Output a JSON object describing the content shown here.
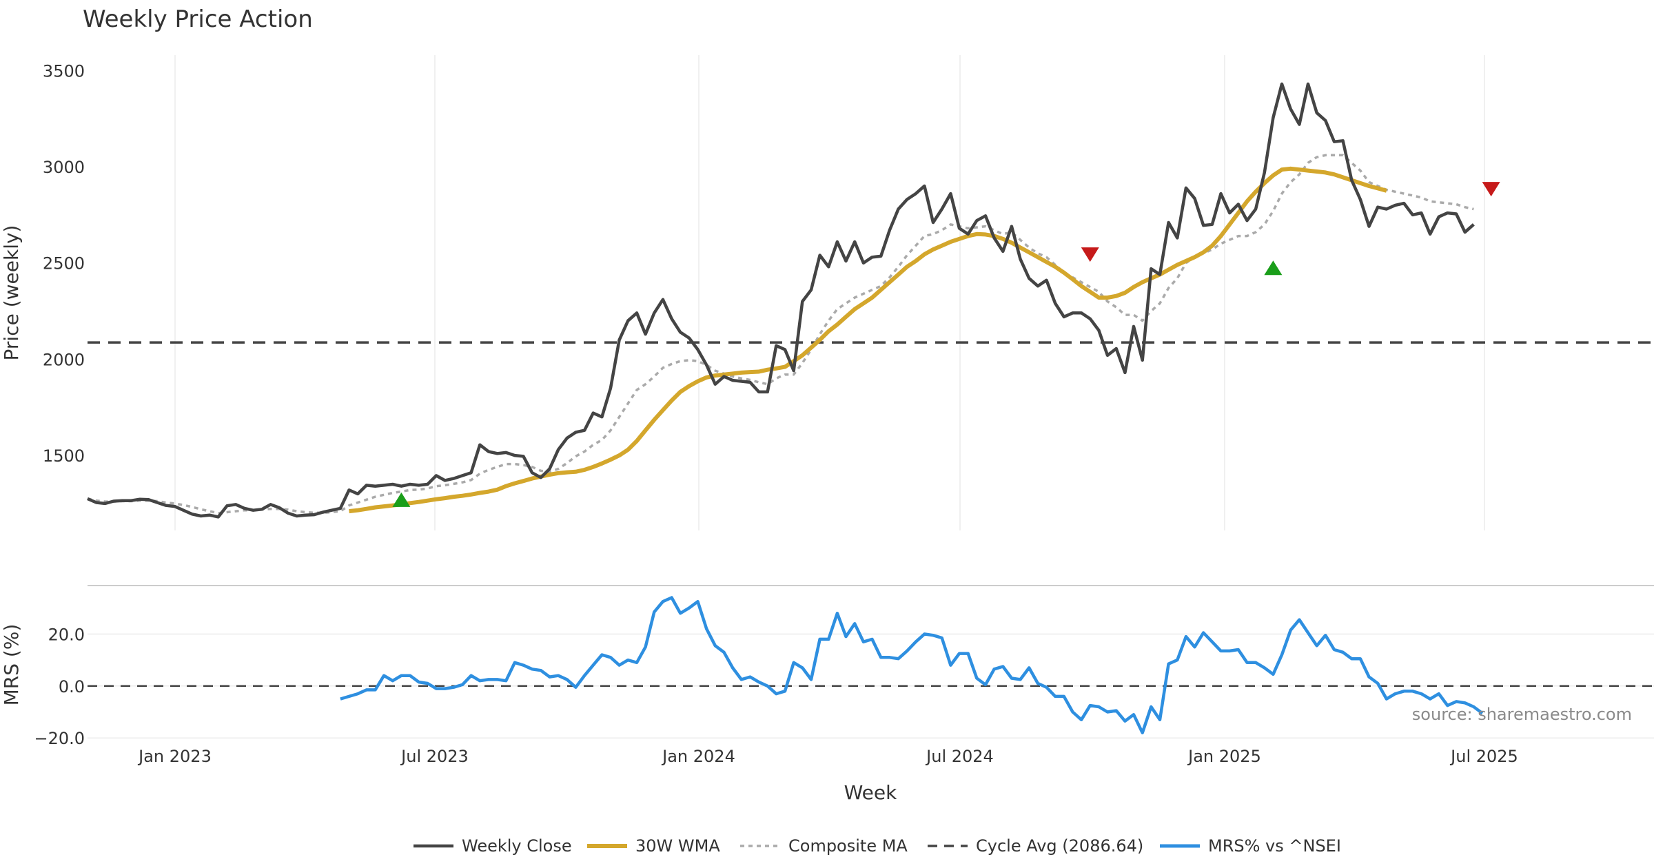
{
  "chart_data": {
    "type": "line",
    "title": "Weekly Price Action",
    "xlabel": "Week",
    "x_ticks": [
      "Jan 2023",
      "Jul 2023",
      "Jan 2024",
      "Jul 2024",
      "Jan 2025",
      "Jul 2025"
    ],
    "price_panel": {
      "ylabel": "Price (weekly)",
      "ylim": [
        1110,
        3580
      ],
      "y_ticks": [
        1500,
        2000,
        2500,
        3000,
        3500
      ],
      "series": [
        {
          "name": "Weekly Close",
          "color": "#444444",
          "start_week": 0,
          "values": [
            1275,
            1255,
            1250,
            1262,
            1265,
            1265,
            1272,
            1270,
            1255,
            1240,
            1235,
            1215,
            1195,
            1185,
            1190,
            1180,
            1238,
            1245,
            1225,
            1215,
            1220,
            1245,
            1228,
            1200,
            1185,
            1190,
            1192,
            1205,
            1215,
            1225,
            1320,
            1300,
            1345,
            1340,
            1345,
            1350,
            1340,
            1350,
            1345,
            1350,
            1395,
            1370,
            1380,
            1395,
            1410,
            1555,
            1520,
            1510,
            1515,
            1500,
            1495,
            1410,
            1385,
            1430,
            1530,
            1590,
            1620,
            1630,
            1720,
            1700,
            1850,
            2100,
            2200,
            2240,
            2130,
            2240,
            2310,
            2210,
            2140,
            2110,
            2050,
            1970,
            1870,
            1910,
            1890,
            1885,
            1880,
            1830,
            1830,
            2070,
            2050,
            1940,
            2300,
            2360,
            2540,
            2480,
            2610,
            2510,
            2610,
            2500,
            2530,
            2535,
            2670,
            2780,
            2830,
            2860,
            2900,
            2710,
            2780,
            2860,
            2680,
            2650,
            2720,
            2745,
            2630,
            2560,
            2690,
            2520,
            2420,
            2380,
            2410,
            2290,
            2220,
            2240,
            2240,
            2210,
            2150,
            2020,
            2055,
            1930,
            2170,
            1995,
            2470,
            2440,
            2710,
            2630,
            2890,
            2835,
            2695,
            2700,
            2860,
            2760,
            2805,
            2720,
            2780,
            2970,
            3255,
            3430,
            3300,
            3220,
            3430,
            3280,
            3240,
            3130,
            3135,
            2930,
            2830,
            2690,
            2790,
            2780,
            2800,
            2810,
            2750,
            2760,
            2650,
            2740,
            2760,
            2755,
            2660,
            2700
          ]
        },
        {
          "name": "30W WMA",
          "color": "#D4A72C",
          "start_week": 30,
          "values": [
            1210,
            1215,
            1222,
            1230,
            1235,
            1240,
            1245,
            1252,
            1258,
            1265,
            1272,
            1278,
            1285,
            1290,
            1297,
            1305,
            1312,
            1322,
            1340,
            1355,
            1367,
            1380,
            1390,
            1400,
            1408,
            1412,
            1415,
            1425,
            1440,
            1458,
            1478,
            1500,
            1530,
            1575,
            1630,
            1685,
            1735,
            1785,
            1830,
            1860,
            1885,
            1905,
            1915,
            1920,
            1925,
            1930,
            1933,
            1935,
            1945,
            1952,
            1960,
            1990,
            2020,
            2060,
            2100,
            2145,
            2180,
            2220,
            2260,
            2290,
            2320,
            2360,
            2400,
            2440,
            2480,
            2510,
            2545,
            2570,
            2590,
            2610,
            2625,
            2640,
            2650,
            2648,
            2640,
            2625,
            2605,
            2580,
            2555,
            2530,
            2505,
            2480,
            2450,
            2415,
            2380,
            2350,
            2320,
            2320,
            2328,
            2345,
            2375,
            2400,
            2420,
            2440,
            2465,
            2490,
            2510,
            2530,
            2555,
            2590,
            2640,
            2700,
            2760,
            2820,
            2870,
            2915,
            2955,
            2985,
            2990,
            2985,
            2980,
            2975,
            2970,
            2960,
            2945,
            2930,
            2915,
            2900,
            2888,
            2875
          ]
        },
        {
          "name": "Composite MA",
          "color": "#AAAAAA",
          "start_week": 0,
          "values": [
            1275,
            1265,
            1260,
            1260,
            1262,
            1262,
            1265,
            1265,
            1262,
            1255,
            1250,
            1242,
            1232,
            1220,
            1210,
            1200,
            1205,
            1210,
            1215,
            1215,
            1218,
            1222,
            1222,
            1218,
            1210,
            1205,
            1202,
            1202,
            1205,
            1210,
            1240,
            1255,
            1270,
            1285,
            1295,
            1305,
            1312,
            1320,
            1322,
            1328,
            1340,
            1345,
            1352,
            1360,
            1372,
            1405,
            1425,
            1440,
            1455,
            1455,
            1450,
            1440,
            1420,
            1415,
            1430,
            1460,
            1495,
            1520,
            1555,
            1580,
            1630,
            1700,
            1770,
            1840,
            1870,
            1910,
            1955,
            1975,
            1990,
            1995,
            1990,
            1970,
            1940,
            1925,
            1910,
            1900,
            1892,
            1880,
            1870,
            1900,
            1920,
            1920,
            1980,
            2050,
            2130,
            2200,
            2260,
            2290,
            2320,
            2340,
            2360,
            2380,
            2425,
            2480,
            2540,
            2590,
            2640,
            2650,
            2670,
            2700,
            2690,
            2680,
            2685,
            2690,
            2670,
            2650,
            2660,
            2620,
            2580,
            2550,
            2530,
            2490,
            2450,
            2425,
            2400,
            2375,
            2350,
            2300,
            2270,
            2230,
            2230,
            2200,
            2250,
            2290,
            2370,
            2420,
            2500,
            2530,
            2550,
            2570,
            2600,
            2620,
            2640,
            2640,
            2660,
            2700,
            2770,
            2860,
            2920,
            2960,
            3020,
            3050,
            3060,
            3060,
            3060,
            3020,
            2980,
            2920,
            2900,
            2880,
            2870,
            2860,
            2850,
            2840,
            2820,
            2815,
            2810,
            2805,
            2790,
            2780
          ]
        },
        {
          "name": "Cycle Avg (2086.64)",
          "color": "#444444",
          "constant": 2086.64
        }
      ],
      "buy_markers": [
        {
          "week": 36,
          "value": 1268
        },
        {
          "week": 136,
          "value": 2473
        }
      ],
      "sell_markers": [
        {
          "week": 115,
          "value": 2545
        },
        {
          "week": 161,
          "value": 2885
        }
      ]
    },
    "mrs_panel": {
      "ylabel": "MRS (%)",
      "ylim": [
        -21,
        36
      ],
      "y_ticks": [
        "20.0",
        "0.0",
        "−20.0"
      ],
      "y_tick_values": [
        20,
        0,
        -20
      ],
      "zero_line": 0,
      "series": [
        {
          "name": "MRS% vs ^NSEI",
          "color": "#2E8FE0",
          "start_week": 29,
          "values": [
            -5,
            -4,
            -3,
            -1.5,
            -1.5,
            4,
            2,
            4,
            4,
            1.5,
            1,
            -1,
            -1,
            -0.5,
            0.5,
            4,
            2,
            2.5,
            2.5,
            2,
            9,
            8,
            6.5,
            6,
            3.5,
            4,
            2.5,
            -0.5,
            4,
            8,
            12,
            11,
            8,
            10,
            9,
            15,
            28.5,
            32.5,
            34,
            28,
            30,
            32.5,
            22,
            15.5,
            13,
            7,
            2.5,
            3.5,
            1.5,
            0,
            -3,
            -2,
            9,
            7,
            2.5,
            18,
            18,
            28,
            19,
            24,
            17,
            18,
            11,
            11,
            10.5,
            13.5,
            17,
            20,
            19.5,
            18.5,
            8,
            12.5,
            12.5,
            3,
            0.5,
            6.5,
            7.5,
            3,
            2.5,
            7,
            1,
            -0.5,
            -4,
            -4,
            -10,
            -13,
            -7.5,
            -8,
            -10,
            -9.5,
            -13.5,
            -11,
            -18,
            -8,
            -13,
            8.5,
            10,
            19,
            15,
            20.5,
            17,
            13.5,
            13.5,
            14,
            9,
            9,
            7,
            4.5,
            12,
            21.5,
            25.5,
            20.5,
            15.5,
            19.5,
            14,
            13,
            10.5,
            10.5,
            3.5,
            1,
            -5,
            -3,
            -2,
            -2,
            -3,
            -5,
            -3,
            -7.5,
            -6,
            -6.5,
            -8,
            -10.5
          ]
        }
      ]
    },
    "legend": [
      "Weekly Close",
      "30W WMA",
      "Composite MA",
      "Cycle Avg (2086.64)",
      "MRS% vs ^NSEI"
    ],
    "legend_position": "bottom-center",
    "annotation": "source: sharemaestro.com"
  }
}
